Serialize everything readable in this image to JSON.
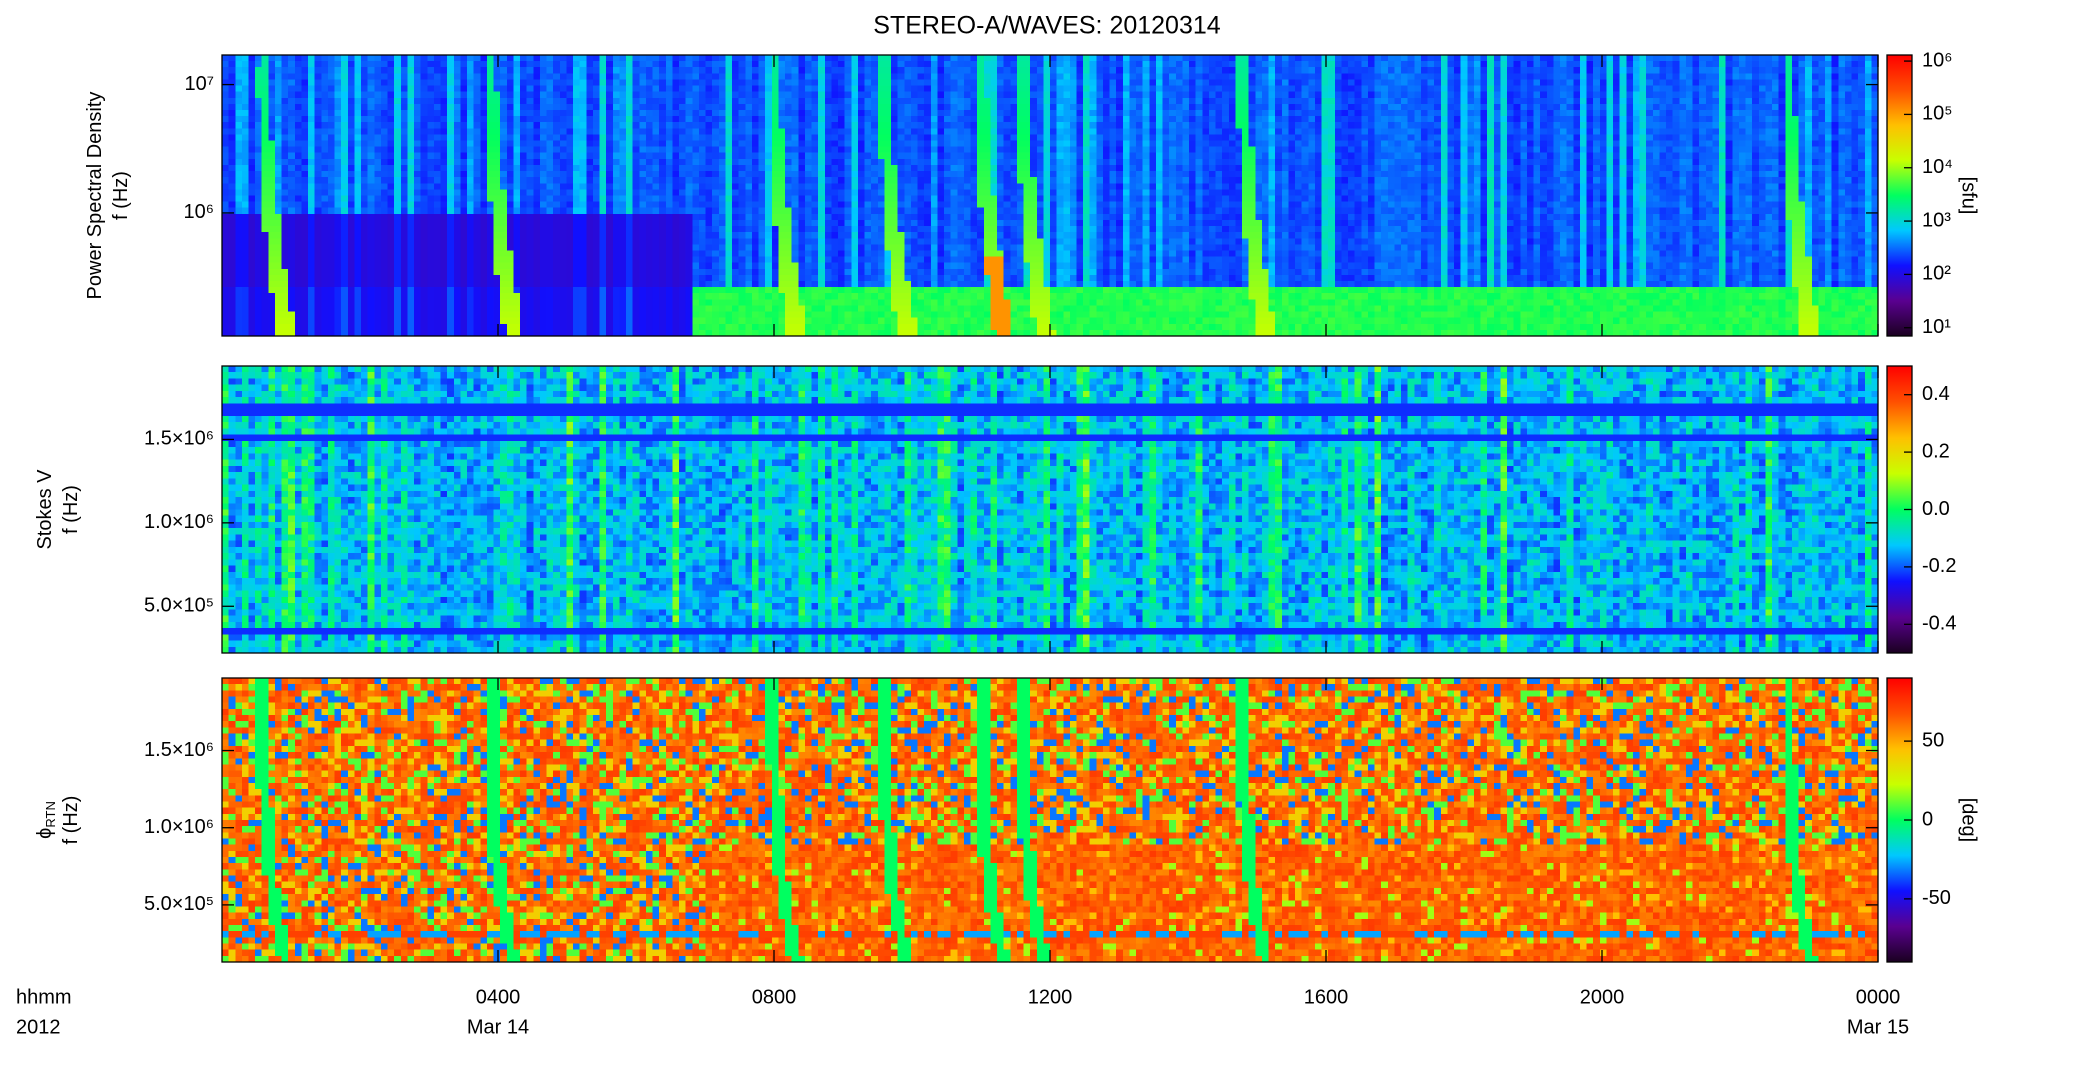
{
  "title": "STEREO-A/WAVES: 20120314",
  "x_axis": {
    "xlim": [
      0,
      24
    ],
    "xticks": [
      {
        "value": 4,
        "label": "0400"
      },
      {
        "value": 8,
        "label": "0800"
      },
      {
        "value": 12,
        "label": "1200"
      },
      {
        "value": 16,
        "label": "1600"
      },
      {
        "value": 20,
        "label": "2000"
      },
      {
        "value": 24,
        "label": "0000"
      }
    ],
    "date_labels": [
      {
        "value": 4,
        "label": "Mar 14"
      },
      {
        "value": 24,
        "label": "Mar 15"
      }
    ],
    "row_labels": [
      "hhmm",
      "2012"
    ]
  },
  "colormap": [
    "#1a0020",
    "#5a0090",
    "#1010ff",
    "#00c8ff",
    "#00ff60",
    "#c8ff00",
    "#ffc000",
    "#ff5000",
    "#ff0000"
  ],
  "chart_data": [
    {
      "type": "heatmap",
      "ylabel": [
        "Power Spectral Density",
        "f (Hz)"
      ],
      "log_y": true,
      "ylim": [
        110000,
        17000000
      ],
      "yticks": [
        {
          "value": 1000000,
          "label": "10⁶"
        },
        {
          "value": 10000000,
          "label": "10⁷"
        }
      ],
      "colorbar": {
        "label": "[sfu]",
        "log": true,
        "lim": [
          7,
          1300000
        ],
        "ticks": [
          {
            "value": 10,
            "label": "10¹"
          },
          {
            "value": 100,
            "label": "10²"
          },
          {
            "value": 1000,
            "label": "10³"
          },
          {
            "value": 10000,
            "label": "10⁴"
          },
          {
            "value": 100000,
            "label": "10⁵"
          },
          {
            "value": 1000000,
            "label": "10⁶"
          }
        ]
      }
    },
    {
      "type": "heatmap",
      "ylabel": [
        "Stokes V",
        "f (Hz)"
      ],
      "log_y": false,
      "ylim": [
        220000,
        1940000
      ],
      "yticks": [
        {
          "value": 500000,
          "label": "5.0×10⁵"
        },
        {
          "value": 1000000,
          "label": "1.0×10⁶"
        },
        {
          "value": 1500000,
          "label": "1.5×10⁶"
        }
      ],
      "colorbar": {
        "log": false,
        "lim": [
          -0.5,
          0.5
        ],
        "ticks": [
          {
            "value": -0.4,
            "label": "-0.4"
          },
          {
            "value": -0.2,
            "label": "-0.2"
          },
          {
            "value": 0,
            "label": "0.0"
          },
          0.2,
          0.4
        ]
      }
    },
    {
      "type": "heatmap",
      "ylabel": [
        "ϕ",
        "f (Hz)"
      ],
      "ylabel_subscript": "RTN",
      "log_y": false,
      "ylim": [
        130000,
        1970000
      ],
      "yticks": [
        {
          "value": 500000,
          "label": "5.0×10⁵"
        },
        {
          "value": 1000000,
          "label": "1.0×10⁶"
        },
        {
          "value": 1500000,
          "label": "1.5×10⁶"
        }
      ],
      "colorbar": {
        "label": "[deg]",
        "log": false,
        "lim": [
          -90,
          90
        ],
        "ticks": [
          -50,
          0,
          50
        ]
      }
    }
  ]
}
